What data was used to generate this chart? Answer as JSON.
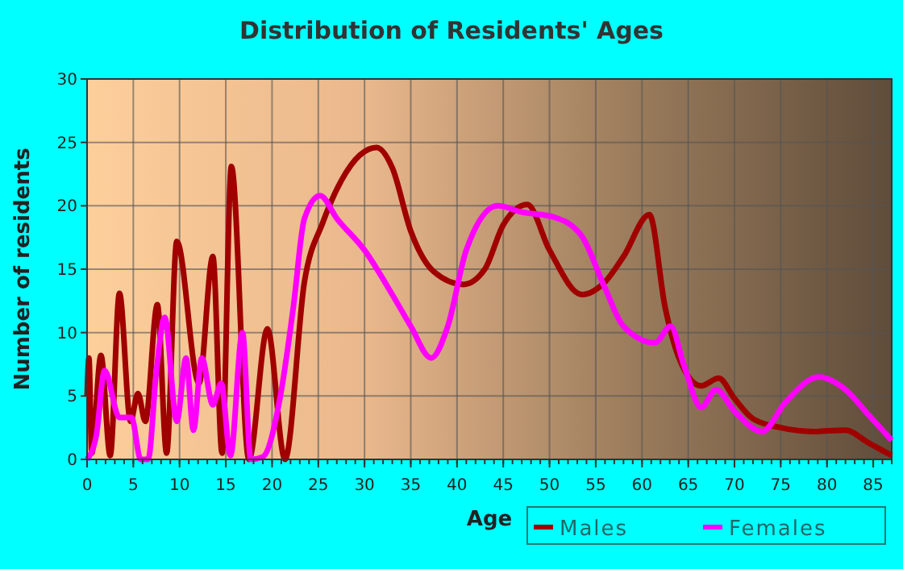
{
  "chart_data": {
    "type": "line",
    "title": "Distribution of Residents' Ages",
    "xlabel": "Age",
    "ylabel": "Number of residents",
    "xlim": [
      0,
      87
    ],
    "xticks": [
      0,
      5,
      10,
      15,
      20,
      25,
      30,
      35,
      40,
      45,
      50,
      55,
      60,
      65,
      70,
      75,
      80,
      85
    ],
    "ylim": [
      0,
      30
    ],
    "yticks": [
      0,
      5,
      10,
      15,
      20,
      25,
      30
    ],
    "grid": true,
    "legend": "bottom right",
    "line_style": "solid",
    "series": [
      {
        "name": "Males",
        "color": "#a00000",
        "x": [
          0,
          0.2,
          0.5,
          1.5,
          2.5,
          3.5,
          4.7,
          5.5,
          6.3,
          7.6,
          8.6,
          9.7,
          12.1,
          13.6,
          14.6,
          15.6,
          17.5,
          19.5,
          21.4,
          23.5,
          25.5,
          27.5,
          29.5,
          31.3,
          33,
          35,
          37.5,
          40.7,
          43,
          45,
          47.6,
          50,
          53.5,
          56,
          58,
          60.8,
          62.5,
          64,
          66.4,
          68.3,
          70,
          72,
          75,
          78.5,
          82,
          84.5,
          87
        ],
        "values": [
          5,
          8,
          0.5,
          8.2,
          0.3,
          13.1,
          3,
          5.2,
          3,
          12.2,
          0.5,
          17.2,
          6,
          16,
          0.5,
          23.1,
          0,
          10.3,
          0,
          14,
          18.7,
          22,
          24,
          24.6,
          23,
          18,
          14.8,
          13.8,
          15,
          18.5,
          20.1,
          16.5,
          13,
          14,
          16,
          19.3,
          12,
          8,
          5.8,
          6.4,
          4.8,
          3.2,
          2.5,
          2.2,
          2.3,
          1.3,
          0.3
        ]
      },
      {
        "name": "Females",
        "color": "#ff00ff",
        "x": [
          0,
          1,
          1.9,
          3.5,
          4.8,
          5.8,
          6.6,
          7.5,
          8.4,
          9.7,
          10.7,
          11.5,
          12.4,
          13.6,
          14.5,
          15.5,
          16.8,
          17.7,
          19,
          20.9,
          22.3,
          23.5,
          25.2,
          27,
          30,
          33,
          35,
          37.2,
          39,
          41,
          44.4,
          47,
          50.5,
          53.5,
          56,
          58,
          61.4,
          63.1,
          64.5,
          66.4,
          68,
          70,
          73,
          75.5,
          79.1,
          82,
          84.5,
          87
        ],
        "values": [
          0,
          1.9,
          7,
          3.3,
          3.3,
          0,
          0,
          7,
          11.2,
          3,
          8,
          2.3,
          8,
          4.3,
          6,
          0.3,
          10,
          0,
          0.2,
          5,
          12,
          19,
          20.8,
          19,
          16.5,
          13,
          10.5,
          8,
          10.5,
          16.5,
          20,
          19.5,
          19.1,
          17.6,
          13.5,
          10.5,
          9.2,
          10.5,
          7.5,
          4.1,
          5.5,
          3.8,
          2.2,
          4.5,
          6.5,
          5.5,
          3.5,
          1.5
        ]
      }
    ]
  }
}
